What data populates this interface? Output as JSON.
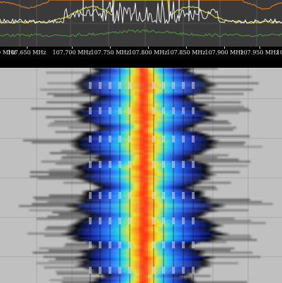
{
  "axis": {
    "labels": [
      "107.650 MHz",
      "107.700 MHz",
      "107.750 MHz",
      "107.800 MHz",
      "107.850 MHz",
      "107.900 MHz",
      "107.950 MHz"
    ],
    "edge_left_fragment": "0 MHz",
    "edge_right_fragment": "10"
  },
  "colors": {
    "spectrum_bg": "#3a3a3a",
    "trace_white": "#f2f2f2",
    "trace_yellow": "#d8d23a",
    "trace_green": "#4f9b3a",
    "trace_orange": "#d87a20",
    "waterfall_bg": "#c0c0c0",
    "heat_scale": [
      "#000000",
      "#0a1e9a",
      "#1e6cff",
      "#18d8e8",
      "#f0ec20",
      "#ff8a10",
      "#ff2a10"
    ]
  },
  "icons": {
    "axis_tick": "tick-mark"
  }
}
